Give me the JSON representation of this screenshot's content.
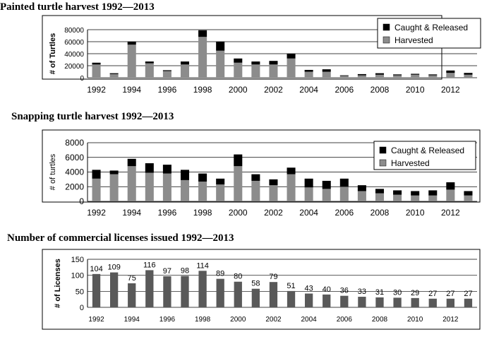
{
  "chart_data": [
    {
      "type": "bar",
      "stacked": true,
      "title": "Painted turtle harvest 1992—2013",
      "ylabel": "# of Turtles",
      "xlabel": "",
      "ylim": [
        0,
        80000
      ],
      "yticks": [
        "0",
        "20000",
        "40000",
        "60000",
        "80000"
      ],
      "ytick_values": [
        0,
        20000,
        40000,
        60000,
        80000
      ],
      "grid": true,
      "legend_position": "top-right",
      "categories": [
        1992,
        1993,
        1994,
        1995,
        1996,
        1997,
        1998,
        1999,
        2000,
        2001,
        2002,
        2003,
        2004,
        2005,
        2006,
        2007,
        2008,
        2009,
        2010,
        2011,
        2012,
        2013
      ],
      "xtick_labels": [
        "1992",
        "1994",
        "1996",
        "1998",
        "2000",
        "2002",
        "2004",
        "2006",
        "2008",
        "2010",
        "2012"
      ],
      "series": [
        {
          "name": "Harvested",
          "color": "#8c8c8c",
          "values": [
            22000,
            6000,
            55000,
            24000,
            11000,
            22000,
            68000,
            45000,
            25000,
            22000,
            22000,
            32000,
            10000,
            10000,
            3000,
            4000,
            5000,
            4000,
            5000,
            4000,
            8000,
            5000
          ]
        },
        {
          "name": "Caught & Released",
          "color": "#000000",
          "values": [
            3000,
            1500,
            5000,
            3000,
            1500,
            5000,
            11000,
            15000,
            7000,
            5000,
            6000,
            8000,
            3000,
            4000,
            1000,
            2000,
            2500,
            1500,
            1500,
            1500,
            4000,
            3000
          ]
        }
      ],
      "legend": [
        "Caught & Released",
        "Harvested"
      ]
    },
    {
      "type": "bar",
      "stacked": true,
      "title": "Snapping turtle harvest 1992—2013",
      "ylabel": "# of turtles",
      "xlabel": "",
      "ylim": [
        0,
        8000
      ],
      "yticks": [
        "0",
        "2000",
        "4000",
        "6000",
        "8000"
      ],
      "ytick_values": [
        0,
        2000,
        4000,
        6000,
        8000
      ],
      "grid": true,
      "legend_position": "top-right",
      "categories": [
        1992,
        1993,
        1994,
        1995,
        1996,
        1997,
        1998,
        1999,
        2000,
        2001,
        2002,
        2003,
        2004,
        2005,
        2006,
        2007,
        2008,
        2009,
        2010,
        2011,
        2012,
        2013
      ],
      "xtick_labels": [
        "1992",
        "1994",
        "1996",
        "1998",
        "2000",
        "2002",
        "2004",
        "2006",
        "2008",
        "2010",
        "2012"
      ],
      "series": [
        {
          "name": "Harvested",
          "color": "#8c8c8c",
          "values": [
            3100,
            3700,
            4800,
            3900,
            3800,
            2900,
            2700,
            2300,
            4800,
            2800,
            2200,
            3700,
            1900,
            1700,
            2000,
            1400,
            1100,
            900,
            800,
            800,
            1600,
            800
          ]
        },
        {
          "name": "Caught & Released",
          "color": "#000000",
          "values": [
            1200,
            500,
            1000,
            1300,
            1200,
            1400,
            1100,
            800,
            1600,
            900,
            800,
            900,
            1200,
            1100,
            1100,
            800,
            600,
            600,
            600,
            700,
            1000,
            600
          ]
        }
      ],
      "legend": [
        "Caught & Released",
        "Harvested"
      ]
    },
    {
      "type": "bar",
      "title": "Number of commercial licenses issued 1992—2013",
      "ylabel": "# of Licenses",
      "xlabel": "",
      "ylim": [
        0,
        150
      ],
      "yticks": [
        "0",
        "50",
        "100",
        "150"
      ],
      "ytick_values": [
        0,
        50,
        100,
        150
      ],
      "grid": true,
      "color": "#595959",
      "categories": [
        1992,
        1993,
        1994,
        1995,
        1996,
        1997,
        1998,
        1999,
        2000,
        2001,
        2002,
        2003,
        2004,
        2005,
        2006,
        2007,
        2008,
        2009,
        2010,
        2011,
        2012,
        2013
      ],
      "xtick_labels": [
        "1992",
        "1994",
        "1996",
        "1998",
        "2000",
        "2002",
        "2004",
        "2006",
        "2008",
        "2010",
        "2012"
      ],
      "values": [
        104,
        109,
        75,
        116,
        97,
        98,
        114,
        89,
        80,
        58,
        79,
        51,
        43,
        40,
        36,
        33,
        31,
        30,
        29,
        27,
        27,
        27
      ],
      "data_labels": [
        "104",
        "109",
        "75",
        "116",
        "97",
        "98",
        "114",
        "89",
        "80",
        "58",
        "79",
        "51",
        "43",
        "40",
        "36",
        "33",
        "31",
        "30",
        "29",
        "27",
        "27",
        "27"
      ]
    }
  ]
}
